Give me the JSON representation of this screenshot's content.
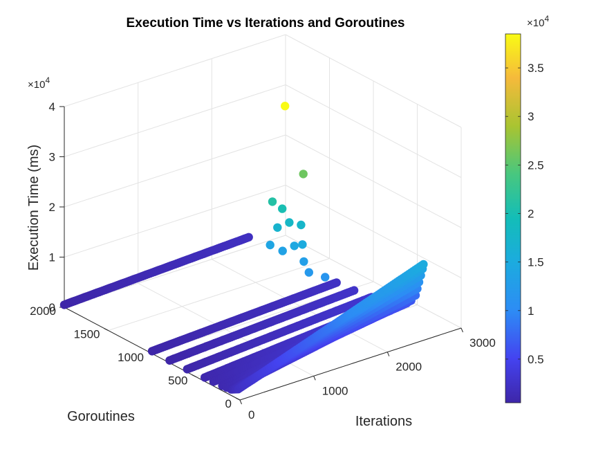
{
  "chart_data": {
    "type": "scatter",
    "title": "Execution Time vs Iterations and Goroutines",
    "xlabel": "Iterations",
    "ylabel": "Goroutines",
    "zlabel": "Execution Time (ms)",
    "xlim": [
      0,
      3000
    ],
    "ylim": [
      0,
      2000
    ],
    "zlim": [
      0,
      40000
    ],
    "x_ticks": [
      "0",
      "1000",
      "2000",
      "3000"
    ],
    "y_ticks": [
      "0",
      "500",
      "1000",
      "1500",
      "2000"
    ],
    "z_ticks": [
      "0",
      "1",
      "2",
      "3",
      "4"
    ],
    "z_exponent_base": "×10",
    "z_exponent_power": "4",
    "grid": true,
    "colorbar": {
      "colormap": "parula",
      "range": [
        500,
        38500
      ],
      "tick_labels": [
        "0.5",
        "1",
        "1.5",
        "2",
        "2.5",
        "3",
        "3.5"
      ],
      "tick_values": [
        5000,
        10000,
        15000,
        20000,
        25000,
        30000,
        35000
      ],
      "exponent_base": "×10",
      "exponent_power": "4"
    },
    "series": [
      {
        "goroutines": 2000,
        "x": [
          0,
          2500
        ],
        "z": [
          500,
          2000
        ]
      },
      {
        "goroutines": 1000,
        "x": [
          0,
          2500
        ],
        "z": [
          500,
          2200
        ]
      },
      {
        "goroutines": 800,
        "x": [
          0,
          2500
        ],
        "z": [
          500,
          2500
        ]
      },
      {
        "goroutines": 600,
        "x": [
          0,
          2500
        ],
        "z": [
          600,
          3000
        ]
      },
      {
        "goroutines": 400,
        "x": [
          0,
          2500
        ],
        "z": [
          800,
          3800
        ]
      },
      {
        "goroutines": 300,
        "x": [
          0,
          2500
        ],
        "z": [
          900,
          4400
        ]
      },
      {
        "goroutines": 200,
        "x": [
          0,
          2500
        ],
        "z": [
          1000,
          5500
        ]
      },
      {
        "goroutines": 150,
        "x": [
          0,
          2500
        ],
        "z": [
          1100,
          6500
        ]
      },
      {
        "goroutines": 100,
        "x": [
          0,
          2500
        ],
        "z": [
          1200,
          8000
        ]
      },
      {
        "goroutines": 80,
        "x": [
          0,
          2500
        ],
        "z": [
          1400,
          9500
        ]
      },
      {
        "goroutines": 60,
        "x": [
          0,
          2500
        ],
        "z": [
          1600,
          11000
        ]
      },
      {
        "goroutines": 40,
        "x": [
          0,
          2500
        ],
        "z": [
          1800,
          12500
        ]
      },
      {
        "goroutines": 20,
        "x": [
          0,
          2500
        ],
        "z": [
          2000,
          14000
        ]
      },
      {
        "goroutines": 10,
        "x": [
          0,
          2500
        ],
        "z": [
          2200,
          15000
        ]
      }
    ],
    "outliers": [
      {
        "x": 1980,
        "y": 1150,
        "z": 38500
      },
      {
        "x": 2050,
        "y": 1000,
        "z": 26000
      },
      {
        "x": 1750,
        "y": 1100,
        "z": 21000
      },
      {
        "x": 1800,
        "y": 1030,
        "z": 20000
      },
      {
        "x": 1800,
        "y": 950,
        "z": 18000
      },
      {
        "x": 1900,
        "y": 900,
        "z": 17500
      },
      {
        "x": 1700,
        "y": 1000,
        "z": 17000
      },
      {
        "x": 1800,
        "y": 800,
        "z": 15000
      },
      {
        "x": 1750,
        "y": 850,
        "z": 14500
      },
      {
        "x": 1600,
        "y": 1000,
        "z": 14000
      },
      {
        "x": 1650,
        "y": 900,
        "z": 13500
      },
      {
        "x": 1700,
        "y": 700,
        "z": 13000
      },
      {
        "x": 1650,
        "y": 600,
        "z": 12000
      },
      {
        "x": 1750,
        "y": 500,
        "z": 11500
      }
    ]
  }
}
